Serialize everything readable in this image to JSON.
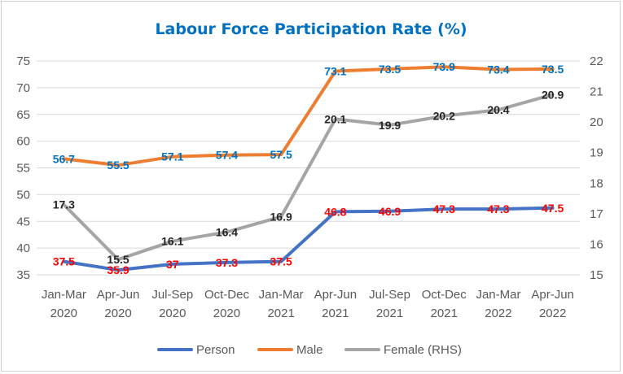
{
  "chart_data": {
    "type": "line",
    "title": "Labour Force Participation Rate (%)",
    "categories": [
      [
        "Jan-Mar",
        "2020"
      ],
      [
        "Apr-Jun",
        "2020"
      ],
      [
        "Jul-Sep",
        "2020"
      ],
      [
        "Oct-Dec",
        "2020"
      ],
      [
        "Jan-Mar",
        "2021"
      ],
      [
        "Apr-Jun",
        "2021"
      ],
      [
        "Jul-Sep",
        "2021"
      ],
      [
        "Oct-Dec",
        "2021"
      ],
      [
        "Jan-Mar",
        "2022"
      ],
      [
        "Apr-Jun",
        "2022"
      ]
    ],
    "y_left": {
      "min": 35,
      "max": 75,
      "ticks": [
        35,
        40,
        45,
        50,
        55,
        60,
        65,
        70,
        75
      ]
    },
    "y_right": {
      "min": 15,
      "max": 22,
      "ticks": [
        15,
        16,
        17,
        18,
        19,
        20,
        21,
        22
      ]
    },
    "grid": true,
    "legend_position": "bottom",
    "series": [
      {
        "name": "Person",
        "axis": "left",
        "color": "#4472C4",
        "label_color": "#FF0000",
        "values": [
          37.5,
          35.9,
          37,
          37.3,
          37.5,
          46.8,
          46.9,
          47.3,
          47.3,
          47.5
        ],
        "labels": [
          "37.5",
          "35.9",
          "37",
          "37.3",
          "37.5",
          "46.8",
          "46.9",
          "47.3",
          "47.3",
          "47.5"
        ]
      },
      {
        "name": "Male",
        "axis": "left",
        "color": "#ED7D31",
        "label_color": "#0070C0",
        "values": [
          56.7,
          55.5,
          57.1,
          57.4,
          57.5,
          73.1,
          73.5,
          73.9,
          73.4,
          73.5
        ],
        "labels": [
          "56.7",
          "55.5",
          "57.1",
          "57.4",
          "57.5",
          "73.1",
          "73.5",
          "73.9",
          "73.4",
          "73.5"
        ]
      },
      {
        "name": "Female (RHS)",
        "axis": "right",
        "color": "#A5A5A5",
        "label_color": "#262626",
        "values": [
          17.3,
          15.5,
          16.1,
          16.4,
          16.9,
          20.1,
          19.9,
          20.2,
          20.4,
          20.9
        ],
        "labels": [
          "17.3",
          "15.5",
          "16.1",
          "16.4",
          "16.9",
          "20.1",
          "19.9",
          "20.2",
          "20.4",
          "20.9"
        ]
      }
    ],
    "title_color": "#0070C0"
  }
}
